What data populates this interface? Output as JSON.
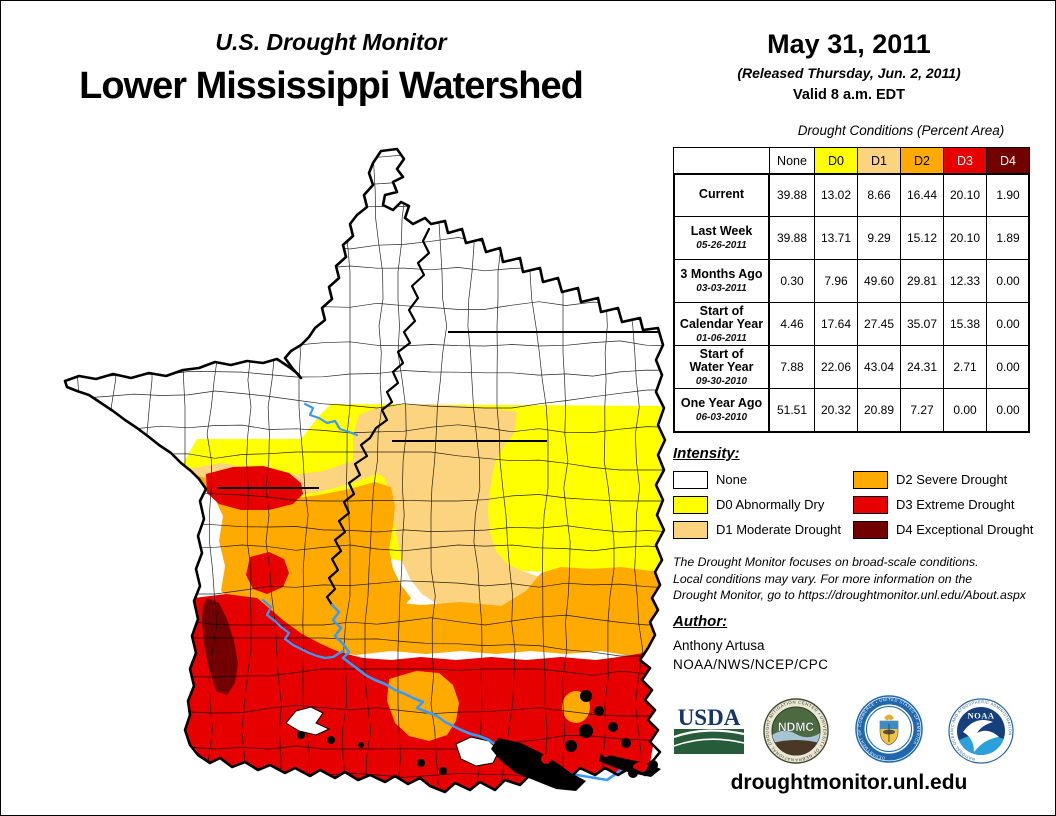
{
  "header": {
    "supertitle": "U.S. Drought Monitor",
    "title": "Lower Mississippi Watershed",
    "date": "May 31, 2011",
    "released": "(Released Thursday, Jun. 2, 2011)",
    "valid": "Valid 8 a.m. EDT"
  },
  "table": {
    "caption": "Drought Conditions (Percent Area)",
    "columns": [
      "None",
      "D0",
      "D1",
      "D2",
      "D3",
      "D4"
    ],
    "rows": [
      {
        "label": "Current",
        "date": "",
        "values": [
          "39.88",
          "13.02",
          "8.66",
          "16.44",
          "20.10",
          "1.90"
        ]
      },
      {
        "label": "Last Week",
        "date": "05-26-2011",
        "values": [
          "39.88",
          "13.71",
          "9.29",
          "15.12",
          "20.10",
          "1.89"
        ]
      },
      {
        "label": "3 Months Ago",
        "date": "03-03-2011",
        "values": [
          "0.30",
          "7.96",
          "49.60",
          "29.81",
          "12.33",
          "0.00"
        ]
      },
      {
        "label": "Start of\nCalendar Year",
        "date": "01-06-2011",
        "values": [
          "4.46",
          "17.64",
          "27.45",
          "35.07",
          "15.38",
          "0.00"
        ]
      },
      {
        "label": "Start of\nWater Year",
        "date": "09-30-2010",
        "values": [
          "7.88",
          "22.06",
          "43.04",
          "24.31",
          "2.71",
          "0.00"
        ]
      },
      {
        "label": "One Year Ago",
        "date": "06-03-2010",
        "values": [
          "51.51",
          "20.32",
          "20.89",
          "7.27",
          "0.00",
          "0.00"
        ]
      }
    ]
  },
  "colors": {
    "none": "#FFFFFF",
    "d0": "#FFFF00",
    "d1": "#FCD37F",
    "d2": "#FFAA00",
    "d3": "#E60000",
    "d4": "#730000",
    "river": "#3B99FC"
  },
  "legend": {
    "title": "Intensity:",
    "items": [
      {
        "label": "None",
        "color": "#FFFFFF"
      },
      {
        "label": "D0 Abnormally Dry",
        "color": "#FFFF00"
      },
      {
        "label": "D1 Moderate Drought",
        "color": "#FCD37F"
      },
      {
        "label": "D2 Severe Drought",
        "color": "#FFAA00"
      },
      {
        "label": "D3 Extreme Drought",
        "color": "#E60000"
      },
      {
        "label": "D4 Exceptional Drought",
        "color": "#730000"
      }
    ]
  },
  "disclaimer": {
    "line1": "The Drought Monitor focuses on broad-scale conditions.",
    "line2": "Local conditions may vary. For more information on the",
    "line3": "Drought Monitor, go to https://droughtmonitor.unl.edu/About.aspx"
  },
  "author": {
    "title": "Author:",
    "name": "Anthony Artusa",
    "org": "NOAA/NWS/NCEP/CPC"
  },
  "logos": {
    "usda": "USDA",
    "ndmc": "NDMC",
    "ndmc_ring": "NATIONAL DROUGHT MITIGATION CENTER • UNIVERSITY OF NEBRASKA",
    "doc_ring": "DEPARTMENT OF COMMERCE • UNITED STATES OF AMERICA",
    "noaa": "NOAA",
    "noaa_ring": "NATIONAL OCEANIC AND ATMOSPHERIC ADMINISTRATION"
  },
  "footer": {
    "url": "droughtmonitor.unl.edu"
  }
}
